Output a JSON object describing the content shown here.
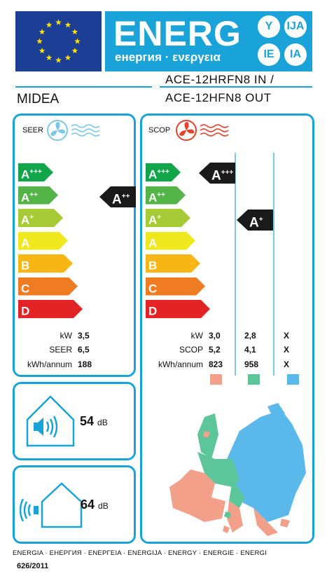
{
  "header": {
    "energy_word": "ENERG",
    "energy_sub": "енергия · ενεργεια",
    "circles": [
      "Y",
      "IJA",
      "IE",
      "IA"
    ]
  },
  "brand": "MIDEA",
  "model": {
    "line1": "ACE-12HRFN8 IN /",
    "line2": "ACE-12HFN8 OUT"
  },
  "scale": [
    {
      "main": "A",
      "sup": "+++",
      "color": "#12a54a"
    },
    {
      "main": "A",
      "sup": "++",
      "color": "#55b447"
    },
    {
      "main": "A",
      "sup": "+",
      "color": "#a7ca37"
    },
    {
      "main": "A",
      "sup": "",
      "color": "#f0e81f"
    },
    {
      "main": "B",
      "sup": "",
      "color": "#f8b615"
    },
    {
      "main": "C",
      "sup": "",
      "color": "#ef7b22"
    },
    {
      "main": "D",
      "sup": "",
      "color": "#e32427"
    }
  ],
  "cooling": {
    "label": "SEER",
    "class": {
      "main": "A",
      "sup": "++"
    },
    "rows": [
      {
        "label": "kW",
        "value": "3,5"
      },
      {
        "label": "SEER",
        "value": "6,5"
      },
      {
        "label": "kWh/annum",
        "value": "188"
      }
    ]
  },
  "heating": {
    "label": "SCOP",
    "classes": [
      {
        "main": "A",
        "sup": "+++",
        "zone": "warmer"
      },
      {
        "main": "A",
        "sup": "+",
        "zone": "average"
      }
    ],
    "rows": [
      {
        "label": "kW",
        "values": [
          "3,0",
          "2,8",
          "X"
        ]
      },
      {
        "label": "SCOP",
        "values": [
          "5,2",
          "4,1",
          "X"
        ]
      },
      {
        "label": "kWh/annum",
        "values": [
          "823",
          "958",
          "X"
        ]
      }
    ],
    "zone_colors": [
      "#f2a08a",
      "#5dc59a",
      "#5ab8ea"
    ]
  },
  "noise": {
    "indoor": {
      "value": "54",
      "unit": "dB"
    },
    "outdoor": {
      "value": "64",
      "unit": "dB"
    }
  },
  "footer": "ENERGIA · ЕНЕРГИЯ · ΕΝΕΡΓΕΙΑ · ENERGIJA · ENERGY · ENERGIE · ENERGI",
  "regulation": "626/2011"
}
